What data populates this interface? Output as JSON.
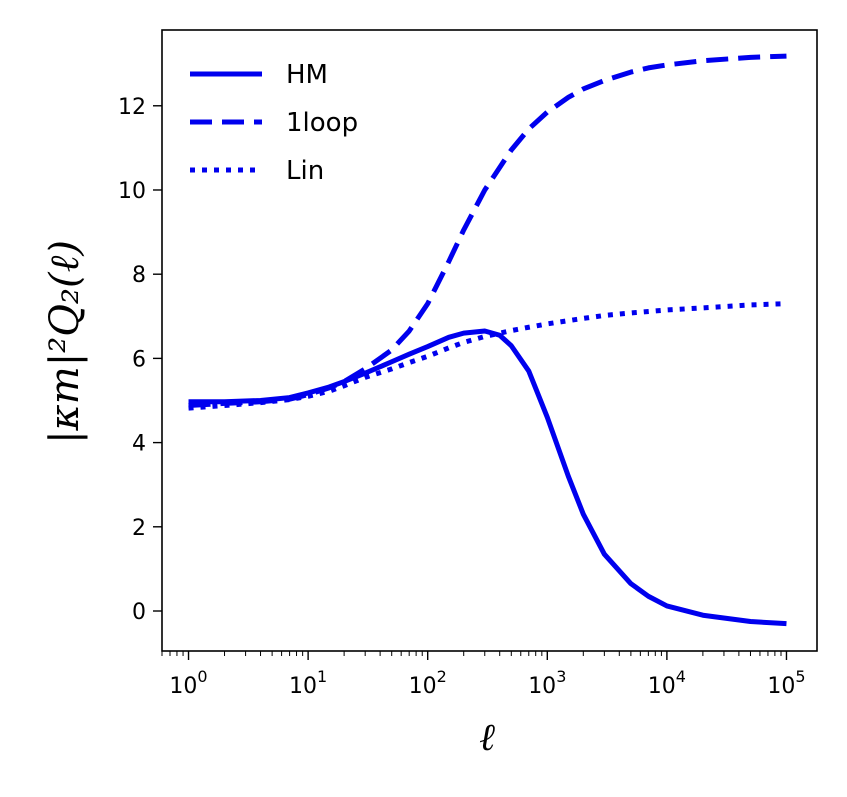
{
  "chart_data": {
    "type": "line",
    "title": "",
    "xlabel": "ℓ",
    "ylabel": "|κm|²Q₂(ℓ)",
    "x_scale": "log",
    "xlim": [
      0.6,
      180000
    ],
    "ylim": [
      -0.95,
      13.8
    ],
    "x_ticks": [
      1,
      10,
      100,
      1000,
      10000,
      100000
    ],
    "x_tick_labels": [
      {
        "base": "10",
        "exp": "0"
      },
      {
        "base": "10",
        "exp": "1"
      },
      {
        "base": "10",
        "exp": "2"
      },
      {
        "base": "10",
        "exp": "3"
      },
      {
        "base": "10",
        "exp": "4"
      },
      {
        "base": "10",
        "exp": "5"
      }
    ],
    "y_ticks": [
      0,
      2,
      4,
      6,
      8,
      10,
      12
    ],
    "y_tick_labels": [
      "0",
      "2",
      "4",
      "6",
      "8",
      "10",
      "12"
    ],
    "grid": false,
    "legend_position": "top-left",
    "color": "#0000ee",
    "series": [
      {
        "name": "HM",
        "style": "solid",
        "x": [
          1,
          2,
          4,
          7,
          10,
          15,
          20,
          30,
          50,
          70,
          100,
          150,
          200,
          300,
          400,
          500,
          700,
          1000,
          1500,
          2000,
          3000,
          5000,
          7000,
          10000,
          20000,
          50000,
          100000
        ],
        "y": [
          4.97,
          4.97,
          5.0,
          5.07,
          5.18,
          5.32,
          5.45,
          5.65,
          5.92,
          6.1,
          6.28,
          6.5,
          6.6,
          6.65,
          6.55,
          6.3,
          5.7,
          4.6,
          3.2,
          2.3,
          1.35,
          0.65,
          0.35,
          0.12,
          -0.1,
          -0.25,
          -0.3
        ]
      },
      {
        "name": "1loop",
        "style": "dashed",
        "x": [
          1,
          2,
          4,
          7,
          10,
          15,
          20,
          30,
          50,
          70,
          100,
          150,
          200,
          300,
          500,
          700,
          1000,
          1500,
          2000,
          3000,
          5000,
          7000,
          10000,
          20000,
          50000,
          100000
        ],
        "y": [
          4.88,
          4.93,
          4.97,
          5.03,
          5.14,
          5.3,
          5.45,
          5.75,
          6.2,
          6.65,
          7.3,
          8.3,
          9.05,
          10.0,
          10.95,
          11.45,
          11.85,
          12.2,
          12.4,
          12.6,
          12.8,
          12.9,
          12.97,
          13.07,
          13.15,
          13.18
        ]
      },
      {
        "name": "Lin",
        "style": "dotted",
        "x": [
          1,
          2,
          4,
          7,
          10,
          15,
          20,
          30,
          50,
          70,
          100,
          150,
          200,
          300,
          500,
          700,
          1000,
          2000,
          3000,
          5000,
          10000,
          20000,
          50000,
          100000
        ],
        "y": [
          4.82,
          4.88,
          4.95,
          5.02,
          5.1,
          5.22,
          5.35,
          5.55,
          5.75,
          5.9,
          6.05,
          6.25,
          6.38,
          6.52,
          6.66,
          6.74,
          6.82,
          6.95,
          7.02,
          7.08,
          7.15,
          7.2,
          7.27,
          7.3
        ]
      }
    ]
  }
}
